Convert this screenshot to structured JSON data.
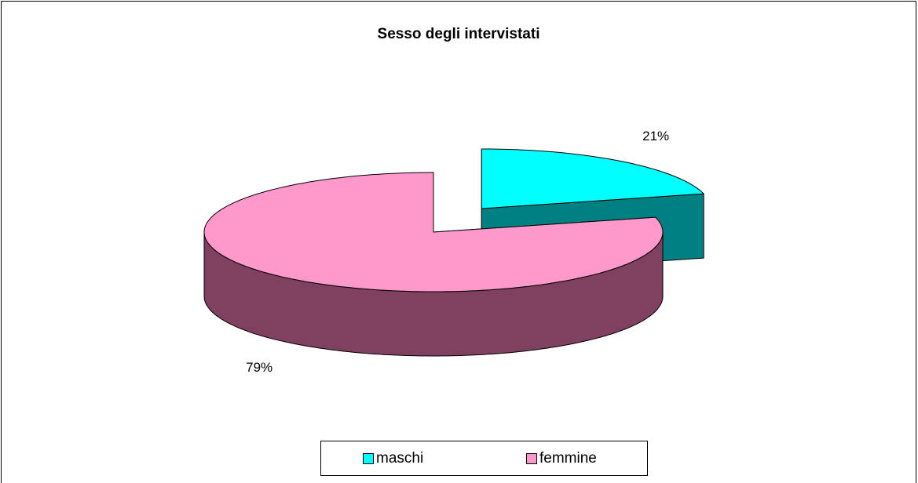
{
  "chart_data": {
    "type": "pie",
    "title": "Sesso degli intervistati",
    "categories": [
      "maschi",
      "femmine"
    ],
    "values": [
      21,
      79
    ],
    "value_labels": [
      "21%",
      "79%"
    ],
    "colors": [
      "#00ffff",
      "#ff99cc"
    ],
    "side_colors": [
      "#008080",
      "#804060"
    ],
    "three_d": true,
    "legend": "bottom"
  }
}
